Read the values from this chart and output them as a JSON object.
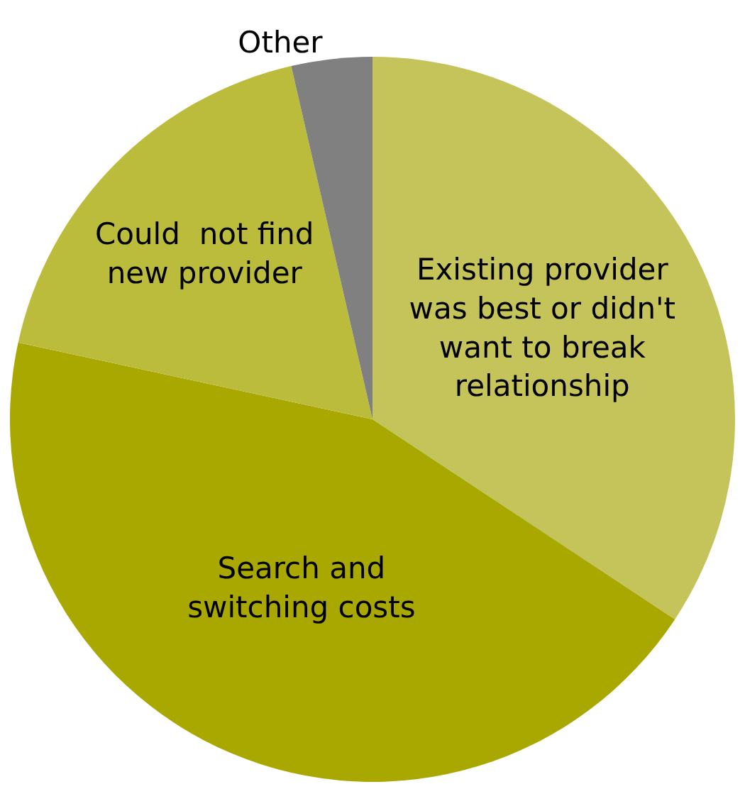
{
  "chart_data": {
    "type": "pie",
    "categories": [
      "Existing provider was best or didn't want to break relationship",
      "Search and switching costs",
      "Could  not find new provider",
      "Other"
    ],
    "values": [
      34.3,
      44.1,
      18.0,
      3.6
    ],
    "colors": [
      "#c4c45a",
      "#a9a800",
      "#bcbc3c",
      "#808080"
    ]
  }
}
